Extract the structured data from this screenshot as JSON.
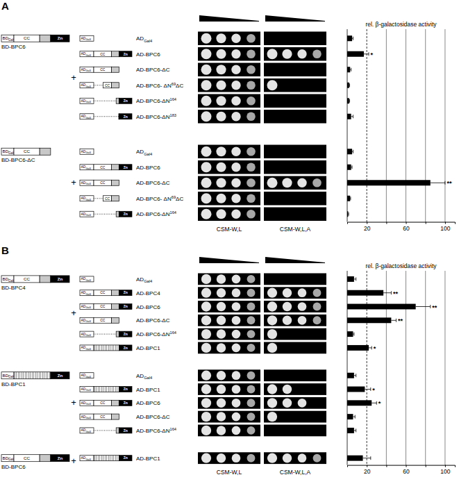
{
  "chart_data": [
    {
      "type": "bar",
      "orientation": "horizontal",
      "title": "A",
      "x_label": "rel. β-galactosidase activity",
      "color": "#000000",
      "grid": true,
      "xlim": [
        0,
        110
      ],
      "xticks": [
        20,
        {
          "value": 40,
          "label": null
        },
        60,
        {
          "value": 80,
          "label": null
        },
        100
      ],
      "reference_line": 20,
      "plate_labels": [
        "CSM-W,L",
        "CSM-W,L,A"
      ],
      "join_symbol": "+",
      "ad_tag": [
        "AD",
        "Gal4"
      ],
      "bd_tag": [
        "BD",
        "Gal4"
      ],
      "groups": [
        {
          "bait": "BD-BPC6",
          "bait_domains": [
            "CC",
            "Zn"
          ],
          "bait_n_deleted": 0,
          "size": 6
        },
        {
          "bait": "BD-BPC6-ΔC",
          "bait_domains": [
            "CC"
          ],
          "bait_n_deleted": 0,
          "size": 5
        }
      ],
      "categories": [
        "ADGal4",
        "AD-BPC6",
        "AD-BPC6-ΔC",
        "AD-BPC6- ΔN69ΔC",
        "AD-BPC6-ΔN164",
        "AD-BPC6-ΔN183",
        "ADGal4",
        "AD-BPC6",
        "AD-BPC6-ΔC",
        "AD-BPC6- ΔN69ΔC",
        "AD-BPC6-ΔN164"
      ],
      "prey_constructs": [
        {
          "domains": [],
          "n_deleted": 0
        },
        {
          "domains": [
            "CC",
            "Zn"
          ],
          "n_deleted": 0
        },
        {
          "domains": [
            "CC"
          ],
          "n_deleted": 0
        },
        {
          "domains": [
            "CC"
          ],
          "n_deleted": 69
        },
        {
          "domains": [
            "Zn"
          ],
          "n_deleted": 164
        },
        {
          "domains": [
            "Zn"
          ],
          "n_deleted": 183
        },
        {
          "domains": [],
          "n_deleted": 0
        },
        {
          "domains": [
            "CC",
            "Zn"
          ],
          "n_deleted": 0
        },
        {
          "domains": [
            "CC"
          ],
          "n_deleted": 0
        },
        {
          "domains": [
            "CC"
          ],
          "n_deleted": 69
        },
        {
          "domains": [
            "Zn"
          ],
          "n_deleted": 164
        }
      ],
      "values": [
        5,
        17,
        3,
        2,
        2,
        4,
        5,
        4,
        85,
        3,
        1
      ],
      "errors": [
        1,
        5,
        1,
        0.5,
        0.5,
        2,
        1,
        1,
        15,
        0.5,
        0.5
      ],
      "significance": [
        null,
        "*",
        null,
        null,
        null,
        null,
        null,
        null,
        "**",
        null,
        null
      ],
      "spots_nonselective": [
        4,
        4,
        4,
        4,
        4,
        4,
        4,
        4,
        4,
        4,
        4
      ],
      "spots_selective": [
        0,
        4,
        0,
        1,
        0,
        0,
        0,
        0,
        4,
        0,
        0
      ]
    },
    {
      "type": "bar",
      "orientation": "horizontal",
      "title": "B",
      "x_label": "rel. β-galactosidase activity",
      "color": "#000000",
      "grid": true,
      "xlim": [
        0,
        110
      ],
      "xticks": [
        20,
        {
          "value": 40,
          "label": null
        },
        60,
        {
          "value": 80,
          "label": null
        },
        100
      ],
      "reference_line": 20,
      "plate_labels": [
        "CSM-W,L",
        "CSM-W,L,A"
      ],
      "join_symbol": "+",
      "ad_tag": [
        "AD",
        "Gal4"
      ],
      "bd_tag": [
        "BD",
        "Gal4"
      ],
      "groups": [
        {
          "bait": "BD-BPC4",
          "bait_domains": [
            "CC",
            "Zn"
          ],
          "bait_n_deleted": 0,
          "size": 6
        },
        {
          "bait": "BD-BPC1",
          "bait_domains": [
            null,
            "Zn"
          ],
          "bait_n_deleted": 0,
          "size": 5
        },
        {
          "bait": "BD-BPC6",
          "bait_domains": [
            "CC",
            "Zn"
          ],
          "bait_n_deleted": 0,
          "size": 1
        }
      ],
      "categories": [
        "ADGal4",
        "AD-BPC4",
        "AD-BPC6",
        "AD-BPC6-ΔC",
        "AD-BPC6-ΔN164",
        "AD-BPC1",
        "ADGal4",
        "AD-BPC1",
        "AD-BPC6",
        "AD-BPC6-ΔC",
        "AD-BPC6-ΔN164",
        "AD-BPC1"
      ],
      "prey_constructs": [
        {
          "domains": [],
          "n_deleted": 0
        },
        {
          "domains": [
            "CC",
            "Zn"
          ],
          "n_deleted": 0
        },
        {
          "domains": [
            "CC",
            "Zn"
          ],
          "n_deleted": 0
        },
        {
          "domains": [
            "CC"
          ],
          "n_deleted": 0
        },
        {
          "domains": [
            "Zn"
          ],
          "n_deleted": 164
        },
        {
          "domains": [
            null,
            "Zn"
          ],
          "n_deleted": 0
        },
        {
          "domains": [],
          "n_deleted": 0
        },
        {
          "domains": [
            null,
            "Zn"
          ],
          "n_deleted": 0
        },
        {
          "domains": [
            "CC",
            "Zn"
          ],
          "n_deleted": 0
        },
        {
          "domains": [
            "CC"
          ],
          "n_deleted": 0
        },
        {
          "domains": [
            "Zn"
          ],
          "n_deleted": 164
        },
        {
          "domains": [
            null,
            "Zn"
          ],
          "n_deleted": 0
        }
      ],
      "values": [
        7,
        37,
        70,
        45,
        6,
        22,
        7,
        18,
        25,
        6,
        7,
        16
      ],
      "errors": [
        2,
        8,
        15,
        5,
        1,
        3,
        2,
        6,
        5,
        2,
        2,
        8
      ],
      "significance": [
        null,
        "**",
        "**",
        "**",
        null,
        "*",
        null,
        "*",
        "*",
        null,
        null,
        null
      ],
      "spots_nonselective": [
        4,
        4,
        4,
        4,
        4,
        4,
        4,
        4,
        4,
        4,
        4,
        4
      ],
      "spots_selective": [
        0,
        4,
        4,
        4,
        1,
        1,
        0,
        2,
        3,
        1,
        0,
        4
      ]
    }
  ]
}
